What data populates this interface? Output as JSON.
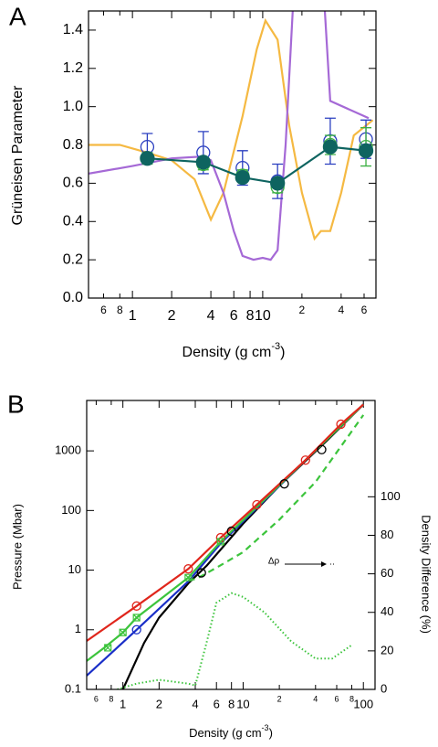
{
  "chart_data": [
    {
      "type": "line",
      "panel": "A",
      "ylabel": "Grüneisen Parameter",
      "xlabel": [
        "Density (g cm",
        "-3",
        ")"
      ],
      "xlog": true,
      "xlim": [
        0.46,
        74
      ],
      "ylim": [
        0,
        1.5
      ],
      "xticks": [
        {
          "value": 0.6,
          "label": "6"
        },
        {
          "value": 0.8,
          "label": "8"
        },
        1,
        2,
        4,
        6,
        8,
        10,
        {
          "value": 20,
          "label": "2"
        },
        {
          "value": 40,
          "label": "4"
        },
        {
          "value": 60,
          "label": "6"
        }
      ],
      "yticks": [
        {
          "value": 0,
          "label": "0.0"
        },
        0.2,
        0.4,
        0.6,
        0.8,
        {
          "value": 1,
          "label": "1.0"
        },
        1.2,
        1.4
      ],
      "series": [
        {
          "color": "#f5b942",
          "linestyle": "solid",
          "x": [
            0.46,
            0.8,
            1.3,
            2,
            3,
            4,
            5,
            7,
            9,
            10.5,
            13,
            16,
            20,
            25,
            28,
            33,
            40,
            50,
            70
          ],
          "values": [
            0.8,
            0.8,
            0.76,
            0.72,
            0.62,
            0.41,
            0.55,
            0.95,
            1.3,
            1.45,
            1.35,
            0.9,
            0.55,
            0.31,
            0.35,
            0.35,
            0.55,
            0.85,
            0.93
          ]
        },
        {
          "color": "#a569d6",
          "linestyle": "solid",
          "x": [
            0.46,
            1,
            2,
            3.5,
            4,
            5,
            6,
            7,
            8.5,
            10,
            11.5,
            13,
            15,
            17,
            19,
            24,
            30,
            33,
            65
          ],
          "values": [
            0.65,
            0.69,
            0.73,
            0.74,
            0.72,
            0.55,
            0.35,
            0.22,
            0.2,
            0.21,
            0.2,
            0.25,
            0.8,
            1.5,
            1.8,
            1.8,
            1.5,
            1.03,
            0.94
          ]
        },
        {
          "color": "#2a3fc0",
          "marker": "open-circle",
          "x": [
            1.3,
            3.5,
            7,
            13,
            33,
            62
          ],
          "values": [
            0.79,
            0.76,
            0.68,
            0.61,
            0.82,
            0.83
          ],
          "errors": [
            0.07,
            0.11,
            0.09,
            0.09,
            0.12,
            0.1
          ]
        },
        {
          "color": "#3cb043",
          "marker": "open-circle",
          "x": [
            1.3,
            3.5,
            7,
            13,
            33,
            62
          ],
          "values": [
            0.73,
            0.7,
            0.64,
            0.58,
            0.8,
            0.79
          ],
          "errors": [
            0.03,
            0.03,
            0.03,
            0.03,
            0.05,
            0.1
          ]
        },
        {
          "color": "#0e6460",
          "marker": "filled-circle",
          "linestyle": "solid",
          "x": [
            1.3,
            3.5,
            7,
            13,
            33,
            62
          ],
          "values": [
            0.73,
            0.71,
            0.63,
            0.6,
            0.79,
            0.77
          ]
        }
      ]
    },
    {
      "type": "line",
      "panel": "B",
      "ylabel": "Pressure (Mbar)",
      "y2label": "Density Difference (%)",
      "xlabel": [
        "Density (g cm",
        "-3",
        ")"
      ],
      "annotation": "Δρ",
      "xlog": true,
      "ylog": true,
      "xlim": [
        0.5,
        125
      ],
      "ylim": [
        0.1,
        7000
      ],
      "y2lim": [
        0,
        150
      ],
      "xticks": [
        {
          "value": 0.6,
          "label": "6"
        },
        {
          "value": 0.8,
          "label": "8"
        },
        1,
        2,
        4,
        6,
        8,
        10,
        {
          "value": 20,
          "label": "2"
        },
        {
          "value": 40,
          "label": "4"
        },
        {
          "value": 60,
          "label": "6"
        },
        {
          "value": 80,
          "label": "8"
        },
        100
      ],
      "yticks": [
        0.1,
        1,
        10,
        100,
        1000
      ],
      "y2ticks": [
        0,
        20,
        40,
        60,
        80,
        100
      ],
      "series": [
        {
          "color": "#000000",
          "linestyle": "solid",
          "x": [
            1,
            1.5,
            2,
            3.5,
            5,
            10,
            20,
            50,
            100
          ],
          "values": [
            0.1,
            0.6,
            1.6,
            6,
            12,
            60,
            260,
            1500,
            6000
          ]
        },
        {
          "color": "#1a2fc8",
          "linestyle": "solid",
          "x": [
            0.5,
            1.3,
            3.5,
            6.5,
            13,
            33,
            100
          ],
          "values": [
            0.17,
            1,
            6.5,
            28,
            110,
            700,
            6000
          ]
        },
        {
          "color": "#3cc43c",
          "linestyle": "solid",
          "x": [
            0.5,
            0.7,
            1,
            1.3,
            3.5,
            6.5,
            13,
            100
          ],
          "values": [
            0.3,
            0.5,
            0.9,
            1.6,
            7.5,
            30,
            115,
            6000
          ]
        },
        {
          "color": "#3cc43c",
          "linestyle": "dashed",
          "x": [
            3.5,
            4,
            6,
            10,
            20,
            40,
            100
          ],
          "values": [
            7,
            7,
            11,
            20,
            70,
            300,
            4000
          ]
        },
        {
          "color": "#e0261c",
          "linestyle": "solid",
          "x": [
            0.5,
            1.3,
            3.5,
            6.5,
            13,
            33,
            65,
            100
          ],
          "values": [
            0.65,
            2.5,
            10.5,
            35,
            125,
            700,
            2800,
            6000
          ]
        },
        {
          "color": "#e0261c",
          "marker": "open-circle",
          "x": [
            1.3,
            3.5,
            6.5,
            13,
            33,
            65
          ],
          "values": [
            2.5,
            10.5,
            35,
            125,
            700,
            2800
          ]
        },
        {
          "color": "#1a2fc8",
          "marker": "open-circle",
          "x": [
            1.3
          ],
          "values": [
            1
          ]
        },
        {
          "color": "#000000",
          "marker": "open-circle",
          "x": [
            4.5,
            8,
            22,
            45
          ],
          "values": [
            9,
            45,
            280,
            1050
          ]
        },
        {
          "color": "#3cc43c",
          "marker": "square-x",
          "x": [
            0.75,
            1.0,
            1.3,
            3.5,
            6.5
          ],
          "values": [
            0.5,
            0.9,
            1.6,
            7.5,
            30
          ]
        },
        {
          "color": "#3cc43c",
          "linestyle": "dotted",
          "axis": "y2",
          "x": [
            0.9,
            1.3,
            2,
            3.5,
            4,
            5,
            6,
            8,
            10,
            15,
            25,
            40,
            55,
            80
          ],
          "values": [
            0,
            3,
            5,
            3,
            2,
            25,
            45,
            50,
            48,
            40,
            25,
            16,
            16,
            23
          ]
        }
      ]
    }
  ]
}
